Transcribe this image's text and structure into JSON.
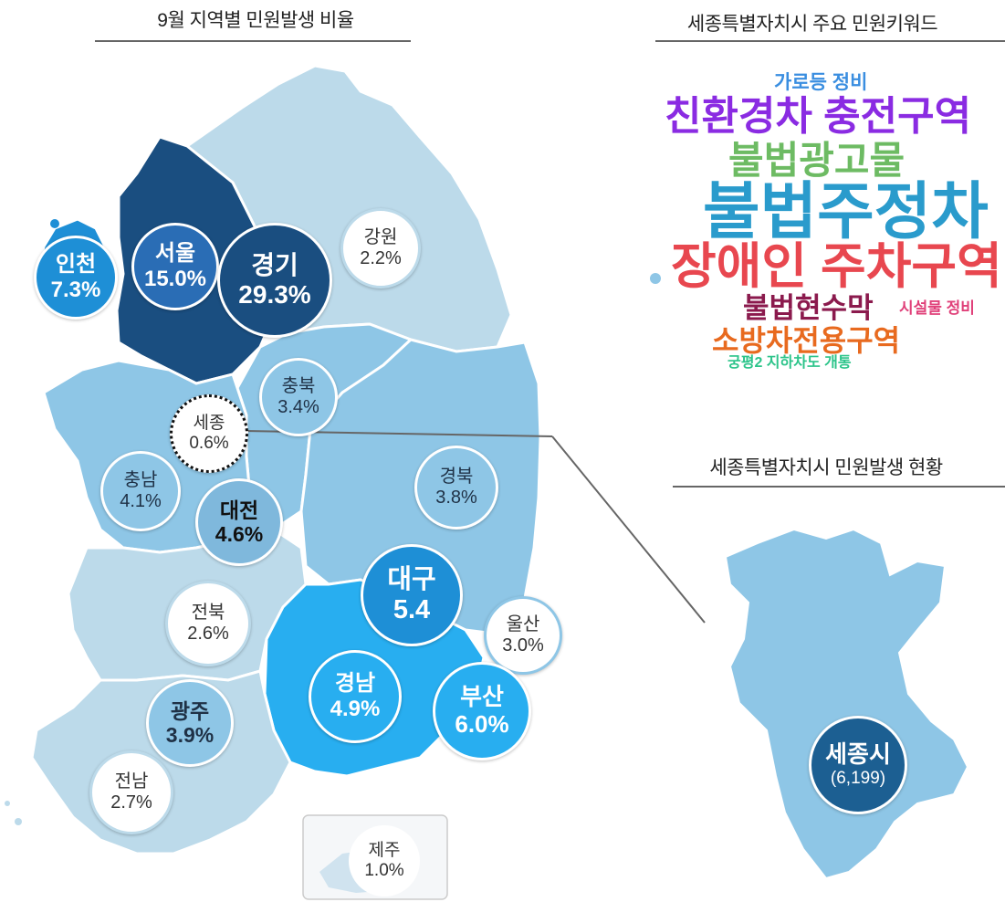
{
  "left_title": "9월 지역별 민원발생 비율",
  "right_title": "세종특별자치시 주요 민원키워드",
  "right_sub_title": "세종특별자치시 민원발생 현황",
  "regions": {
    "incheon": {
      "name": "인천",
      "value": "7.3%"
    },
    "seoul": {
      "name": "서울",
      "value": "15.0%"
    },
    "gyeonggi": {
      "name": "경기",
      "value": "29.3%"
    },
    "gangwon": {
      "name": "강원",
      "value": "2.2%"
    },
    "chungbuk": {
      "name": "충북",
      "value": "3.4%"
    },
    "sejong": {
      "name": "세종",
      "value": "0.6%"
    },
    "chungnam": {
      "name": "충남",
      "value": "4.1%"
    },
    "daejeon": {
      "name": "대전",
      "value": "4.6%"
    },
    "gyeongbuk": {
      "name": "경북",
      "value": "3.8%"
    },
    "daegu": {
      "name": "대구",
      "value": "5.4"
    },
    "jeonbuk": {
      "name": "전북",
      "value": "2.6%"
    },
    "ulsan": {
      "name": "울산",
      "value": "3.0%"
    },
    "gyeongnam": {
      "name": "경남",
      "value": "4.9%"
    },
    "busan": {
      "name": "부산",
      "value": "6.0%"
    },
    "gwangju": {
      "name": "광주",
      "value": "3.9%"
    },
    "jeonnam": {
      "name": "전남",
      "value": "2.7%"
    },
    "jeju": {
      "name": "제주",
      "value": "1.0%"
    }
  },
  "keywords": [
    {
      "text": "가로등 정비",
      "color": "#3a8ee0"
    },
    {
      "text": "친환경차 충전구역",
      "color": "#8a2be2"
    },
    {
      "text": "불법광고물",
      "color": "#6dbb63"
    },
    {
      "text": "불법주정차",
      "color": "#2a9bcc"
    },
    {
      "text": "장애인 주차구역",
      "color": "#e8474f"
    },
    {
      "text": "불법현수막",
      "color": "#8b1a4d"
    },
    {
      "text": "시설물 정비",
      "color": "#e0417a"
    },
    {
      "text": "소방차전용구역",
      "color": "#e86a1f"
    },
    {
      "text": "궁평2 지하차도 개통",
      "color": "#2cc48a"
    }
  ],
  "sejong_city": {
    "name": "세종시",
    "count": "(6,199)"
  },
  "colors": {
    "darkest": "#1a4e80",
    "dark": "#2a6db5",
    "mid": "#1e8fd6",
    "bright": "#28aef0",
    "light": "#8ec6e6",
    "pale": "#bcdaea",
    "line": "#666666"
  }
}
